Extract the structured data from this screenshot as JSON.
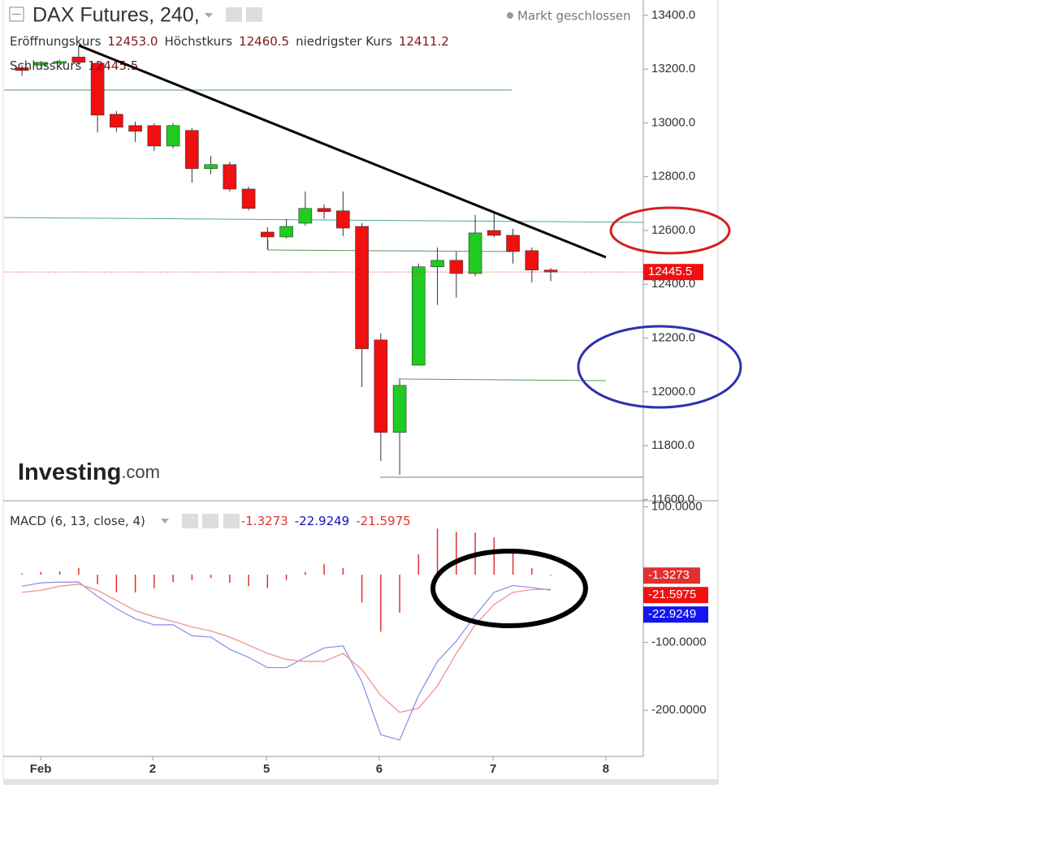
{
  "header": {
    "title": "DAX Futures, 240,",
    "status": "Markt geschlossen",
    "ohlc": [
      {
        "name": "Eröffnungskurs",
        "value": "12453.0"
      },
      {
        "name": "Höchstkurs",
        "value": "12460.5"
      },
      {
        "name": "niedrigster Kurs",
        "value": "12411.2"
      },
      {
        "name": "Schlusskurs",
        "value": "12445.5"
      }
    ]
  },
  "watermark": {
    "brand": "Investing",
    "suffix": ".com"
  },
  "chart_data": [
    {
      "type": "candlestick",
      "x": [
        0,
        1,
        2,
        3,
        4,
        5,
        6,
        7,
        8,
        9,
        10,
        11,
        12,
        13,
        14,
        15,
        16,
        17,
        18,
        19,
        20,
        21,
        22,
        23,
        24,
        25,
        26,
        27,
        28
      ],
      "open": [
        13205,
        13215,
        13225,
        13245,
        13222,
        13032,
        12990,
        12990,
        12914,
        12972,
        12830,
        12845,
        12754,
        12594,
        12576,
        12627,
        12682,
        12673,
        12615,
        12193,
        11849,
        12099,
        12465,
        12489,
        12440,
        12600,
        12582,
        12525,
        12453
      ],
      "high": [
        13215,
        13230,
        13235,
        13285,
        13230,
        13044,
        13005,
        12999,
        12999,
        12981,
        12878,
        12855,
        12763,
        12612,
        12643,
        12745,
        12697,
        12745,
        12627,
        12217,
        12051,
        12477,
        12537,
        12522,
        12658,
        12664,
        12606,
        12537,
        12460.5
      ],
      "low": [
        13175,
        13210,
        13220,
        13215,
        12965,
        12966,
        12929,
        12896,
        12905,
        12778,
        12809,
        12745,
        12675,
        12528,
        12570,
        12618,
        12643,
        12579,
        12018,
        11743,
        11692,
        12099,
        12323,
        12350,
        12430,
        12575,
        12477,
        12407,
        12411.2
      ],
      "close": [
        13195,
        13225,
        13228,
        13225,
        13029,
        12984,
        12969,
        12914,
        12990,
        12830,
        12845,
        12754,
        12682,
        12576,
        12615,
        12682,
        12670,
        12609,
        12160,
        11849,
        12024,
        12465,
        12489,
        12440,
        12591,
        12582,
        12522,
        12453,
        12445.5
      ],
      "up_color": "#1fcc1f",
      "down_color": "#f01010",
      "last_label": "12445.5",
      "xlim": [
        -0.95,
        32.9
      ],
      "ylim": [
        11595,
        13457
      ],
      "yticks": [
        {
          "value": 11600,
          "label": "11600.0"
        },
        {
          "value": 11800,
          "label": "11800.0"
        },
        {
          "value": 12000,
          "label": "12000.0"
        },
        {
          "value": 12200,
          "label": "12200.0"
        },
        {
          "value": 12400,
          "label": "12400.0"
        },
        {
          "value": 12600,
          "label": "12600.0"
        },
        {
          "value": 12800,
          "label": "12800.0"
        },
        {
          "value": 13000,
          "label": "13000.0"
        },
        {
          "value": 13200,
          "label": "13200.0"
        },
        {
          "value": 13400,
          "label": "13400.0"
        }
      ]
    },
    {
      "type": "macd",
      "title": "MACD (6, 13, close, 4)",
      "x": [
        0,
        1,
        2,
        3,
        4,
        5,
        6,
        7,
        8,
        9,
        10,
        11,
        12,
        13,
        14,
        15,
        16,
        17,
        18,
        19,
        20,
        21,
        22,
        23,
        24,
        25,
        26,
        27,
        28
      ],
      "series": [
        {
          "style": "bar",
          "color": "#e03030",
          "last_label": "-1.3273",
          "values": [
            2,
            4,
            5,
            10,
            -14,
            -26,
            -26,
            -20,
            -11,
            -8,
            -5,
            -12,
            -17,
            -20,
            -8,
            4,
            16,
            10,
            -41,
            -84,
            -56,
            30,
            68,
            63,
            62,
            55,
            34,
            10,
            -1.3273
          ]
        },
        {
          "style": "line",
          "color": "#1010c0",
          "line_color": "#8a8ae8",
          "badge_color": "#1414f0",
          "last_label": "-22.9249",
          "values": [
            -17,
            -12,
            -11,
            -11,
            -32,
            -50,
            -65,
            -74,
            -74,
            -90,
            -92,
            -110,
            -122,
            -137,
            -137,
            -122,
            -108,
            -105,
            -158,
            -236,
            -244,
            -178,
            -128,
            -98,
            -60,
            -26,
            -16,
            -19,
            -22.9249
          ]
        },
        {
          "style": "line",
          "color": "#e03030",
          "line_color": "#f08a8a",
          "badge_color": "#f01010",
          "last_label": "-21.5975",
          "values": [
            -26,
            -23,
            -17,
            -14,
            -23,
            -38,
            -53,
            -62,
            -69,
            -77,
            -83,
            -92,
            -104,
            -116,
            -125,
            -128,
            -128,
            -116,
            -140,
            -178,
            -203,
            -197,
            -164,
            -116,
            -74,
            -44,
            -26,
            -22,
            -21.5975
          ]
        }
      ],
      "xlim": [
        -0.95,
        32.9
      ],
      "ylim": [
        -268,
        109
      ],
      "yticks": [
        {
          "value": 100,
          "label": "100.0000"
        },
        {
          "value": -100,
          "label": "-100.0000"
        },
        {
          "value": -200,
          "label": "-200.0000"
        }
      ],
      "xticks": [
        {
          "value": 0.99,
          "label": "Feb"
        },
        {
          "value": 6.92,
          "label": "2"
        },
        {
          "value": 12.95,
          "label": "5"
        },
        {
          "value": 18.92,
          "label": "6"
        },
        {
          "value": 24.95,
          "label": "7"
        },
        {
          "value": 30.92,
          "label": "8"
        }
      ]
    }
  ]
}
